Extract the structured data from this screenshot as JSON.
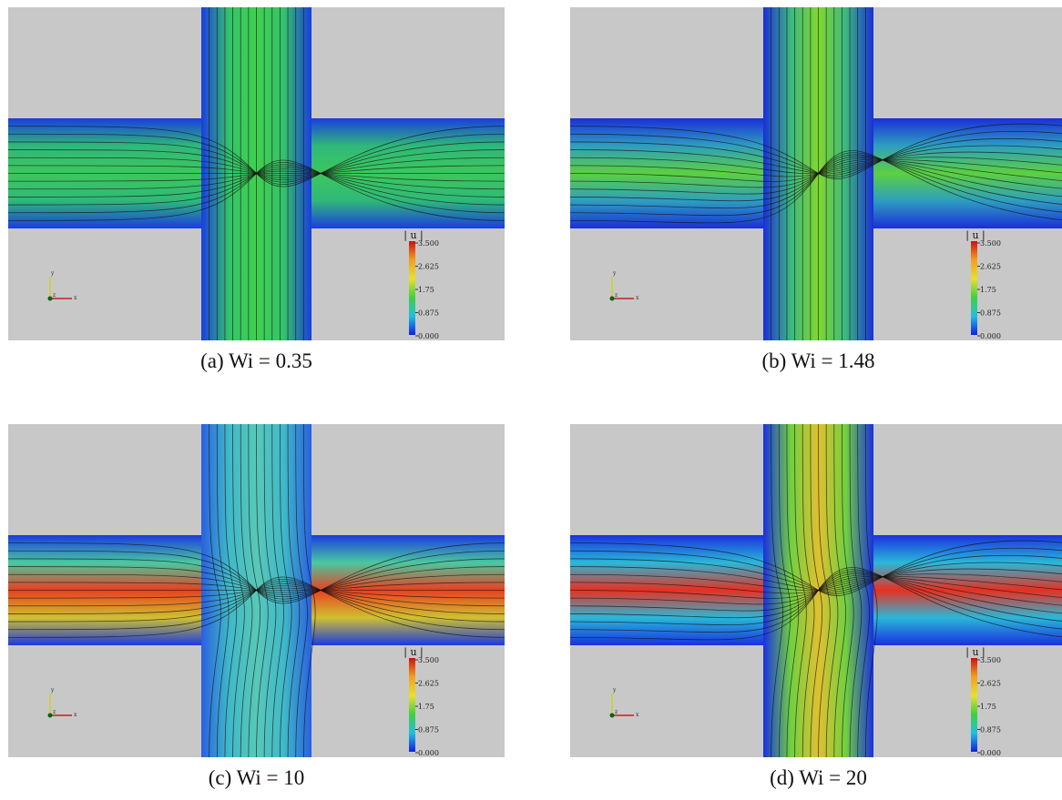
{
  "panels": [
    {
      "caption": "(a) Wi = 0.35",
      "colorbar": {
        "title": "| u |",
        "ticks": [
          "3.500",
          "2.625",
          "1.75",
          "0.875",
          "0.000"
        ]
      },
      "axes": [
        "x",
        "y",
        "z"
      ]
    },
    {
      "caption": "(b) Wi = 1.48",
      "colorbar": {
        "title": "| u |",
        "ticks": [
          "3.500",
          "2.625",
          "1.75",
          "0.875",
          "0.000"
        ]
      },
      "axes": [
        "x",
        "y",
        "z"
      ]
    },
    {
      "caption": "(c) Wi = 10",
      "colorbar": {
        "title": "| u |",
        "ticks": [
          "3.500",
          "2.625",
          "1.75",
          "0.875",
          "0.000"
        ]
      },
      "axes": [
        "x",
        "y",
        "z"
      ]
    },
    {
      "caption": "(d) Wi = 20",
      "colorbar": {
        "title": "| u |",
        "ticks": [
          "3.500",
          "2.625",
          "1.75",
          "0.875",
          "0.000"
        ]
      },
      "axes": [
        "x",
        "y",
        "z"
      ]
    }
  ]
}
